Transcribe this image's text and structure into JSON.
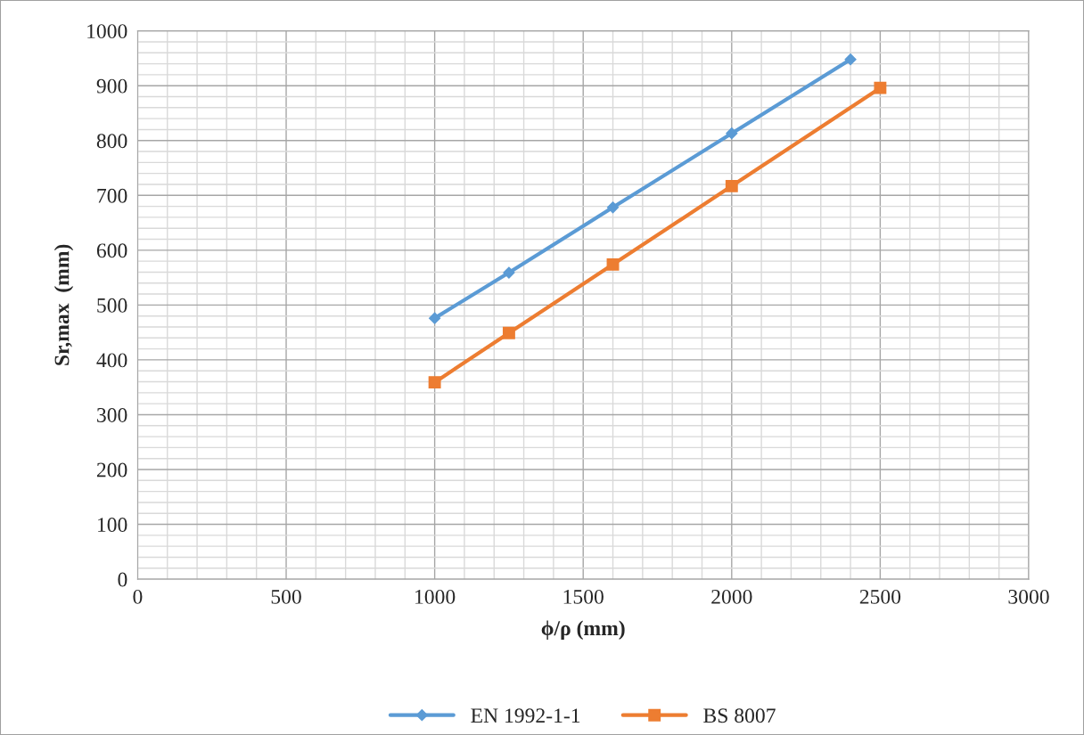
{
  "chart_data": {
    "type": "line",
    "xlabel": "ϕ/ρ (mm)",
    "ylabel": "Sr,max  (mm)",
    "xlim": [
      0,
      3000
    ],
    "xticks": [
      0,
      500,
      1000,
      1500,
      2000,
      2500,
      3000
    ],
    "ylim": [
      0,
      1000
    ],
    "yticks": [
      0,
      100,
      200,
      300,
      400,
      500,
      600,
      700,
      800,
      900,
      1000
    ],
    "grid": true,
    "legend": "bottom",
    "series": [
      {
        "name": "EN 1992-1-1",
        "color": "#5b9bd5",
        "marker": "diamond",
        "x": [
          1000,
          1250,
          1600,
          2000,
          2400
        ],
        "values": [
          476,
          559,
          678,
          813,
          948
        ]
      },
      {
        "name": "BS 8007",
        "color": "#ed7d31",
        "marker": "square",
        "x": [
          1000,
          1250,
          1600,
          2000,
          2500
        ],
        "values": [
          359,
          449,
          574,
          717,
          896
        ]
      }
    ]
  }
}
